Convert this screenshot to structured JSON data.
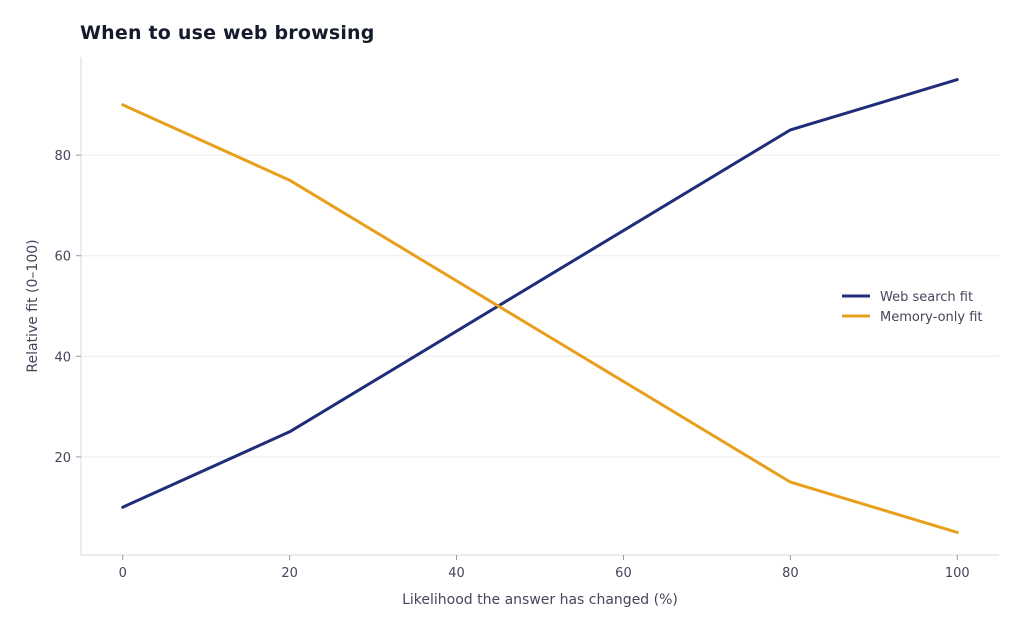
{
  "chart_data": {
    "type": "line",
    "title": "When to use web browsing",
    "xlabel": "Likelihood the answer has changed (%)",
    "ylabel": "Relative fit (0–100)",
    "x": [
      0,
      20,
      80,
      100
    ],
    "series": [
      {
        "name": "Web search fit",
        "color": "#1f2d7a",
        "values": [
          10,
          25,
          85,
          95
        ]
      },
      {
        "name": "Memory-only fit",
        "color": "#e8a01c",
        "values": [
          90,
          75,
          15,
          5
        ]
      }
    ],
    "xticks": [
      0,
      20,
      40,
      60,
      80,
      100
    ],
    "yticks": [
      20,
      40,
      60,
      80
    ],
    "xlim": [
      -5,
      105
    ],
    "ylim": [
      0.5,
      99.5
    ],
    "grid": "horizontal",
    "legend_position": "right"
  }
}
